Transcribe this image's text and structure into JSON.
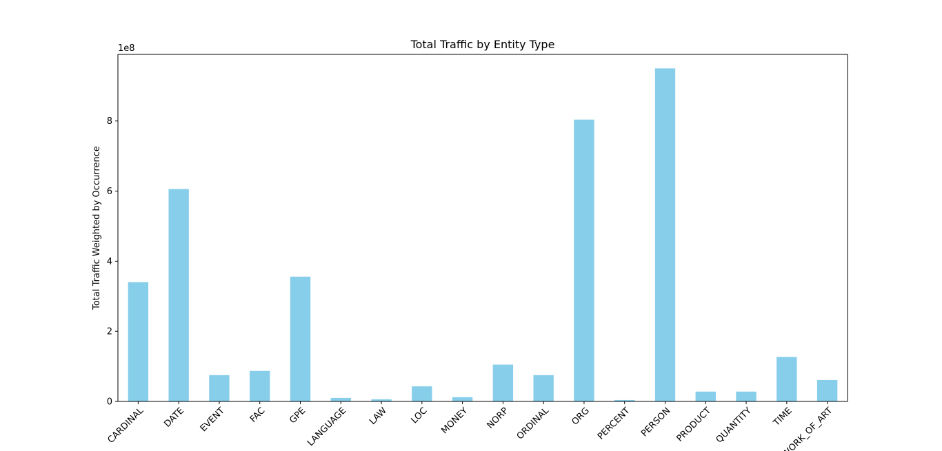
{
  "chart_data": {
    "type": "bar",
    "title": "Total Traffic by Entity Type",
    "xlabel": "",
    "ylabel": "Total Traffic Weighted by Occurrence",
    "offset_text": "1e8",
    "scale": 100000000,
    "categories": [
      "CARDINAL",
      "DATE",
      "EVENT",
      "FAC",
      "GPE",
      "LANGUAGE",
      "LAW",
      "LOC",
      "MONEY",
      "NORP",
      "ORDINAL",
      "ORG",
      "PERCENT",
      "PERSON",
      "PRODUCT",
      "QUANTITY",
      "TIME",
      "WORK_OF_ART"
    ],
    "values": [
      340000000,
      606000000,
      75000000,
      87000000,
      356000000,
      10000000,
      6000000,
      43000000,
      12000000,
      105000000,
      75000000,
      804000000,
      4000000,
      950000000,
      28000000,
      28000000,
      127000000,
      61000000
    ],
    "yticks": [
      0,
      2,
      4,
      6,
      8
    ],
    "ylim": [
      0,
      990000000
    ],
    "bar_color": "#87ceeb",
    "grid": false,
    "legend": "none"
  }
}
